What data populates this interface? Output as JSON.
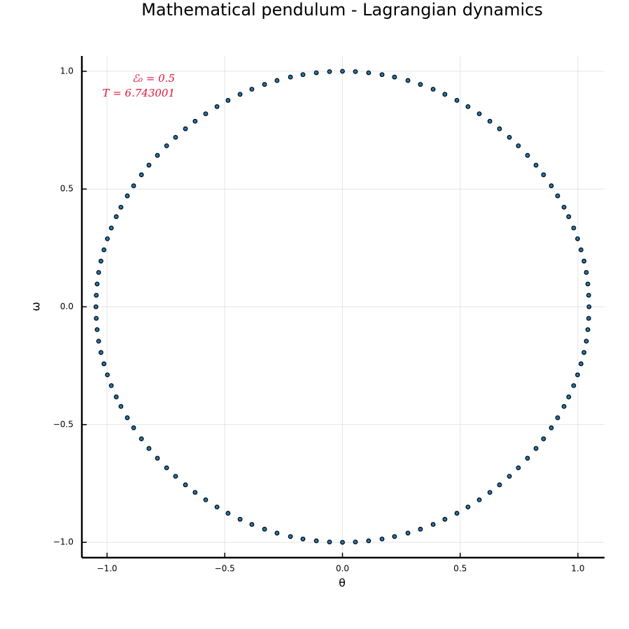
{
  "chart_data": {
    "type": "scatter",
    "title": "Mathematical pendulum - Lagrangian dynamics",
    "x_label": "θ",
    "y_label": "ω",
    "annotations": [
      "ℰ₀ = 0.5",
      "T = 6.743001"
    ],
    "annotation_color": "#dc143c",
    "grid": true,
    "xlim": [
      -1.107,
      1.113
    ],
    "ylim": [
      -1.065,
      1.065
    ],
    "xticks": [
      {
        "value": -1,
        "label": "−1.0"
      },
      {
        "value": -0.5,
        "label": "−0.5"
      },
      {
        "value": 0,
        "label": "0.0"
      },
      {
        "value": 0.5,
        "label": "0.5"
      },
      {
        "value": 1,
        "label": "1.0"
      }
    ],
    "yticks": [
      {
        "value": -1,
        "label": "−1.0"
      },
      {
        "value": -0.5,
        "label": "−0.5"
      },
      {
        "value": 0,
        "label": "0.0"
      },
      {
        "value": 0.5,
        "label": "0.5"
      },
      {
        "value": 1,
        "label": "1.0"
      }
    ],
    "color": "#1f78b4",
    "x": [
      0,
      0.055,
      0.111,
      0.168,
      0.221,
      0.278,
      0.331,
      0.385,
      0.435,
      0.486,
      0.533,
      0.581,
      0.626,
      0.667,
      0.709,
      0.747,
      0.786,
      0.822,
      0.854,
      0.887,
      0.914,
      0.941,
      0.961,
      0.982,
      0.9986,
      1.0132,
      1.0259,
      1.0357,
      1.0421,
      1.0458,
      1.0472,
      1.0458,
      1.0421,
      1.0357,
      1.0259,
      1.0132,
      0.9986,
      0.982,
      0.961,
      0.941,
      0.914,
      0.887,
      0.854,
      0.822,
      0.786,
      0.747,
      0.709,
      0.667,
      0.626,
      0.581,
      0.533,
      0.486,
      0.435,
      0.385,
      0.331,
      0.278,
      0.221,
      0.168,
      0.111,
      0.055,
      0,
      -0.055,
      -0.111,
      -0.168,
      -0.221,
      -0.278,
      -0.331,
      -0.385,
      -0.435,
      -0.486,
      -0.533,
      -0.581,
      -0.626,
      -0.667,
      -0.709,
      -0.747,
      -0.786,
      -0.822,
      -0.854,
      -0.887,
      -0.914,
      -0.941,
      -0.961,
      -0.982,
      -0.9986,
      -1.0132,
      -1.0259,
      -1.0357,
      -1.0421,
      -1.0458,
      -1.0472,
      -1.0458,
      -1.0421,
      -1.0357,
      -1.0259,
      -1.0132,
      -0.9986,
      -0.982,
      -0.961,
      -0.941,
      -0.914,
      -0.887,
      -0.854,
      -0.822,
      -0.786,
      -0.747,
      -0.709,
      -0.667,
      -0.626,
      -0.581,
      -0.533,
      -0.486,
      -0.435,
      -0.385,
      -0.331,
      -0.278,
      -0.221,
      -0.168,
      -0.111,
      -0.055
    ],
    "values": [
      1,
      0.9985,
      0.9938,
      0.9858,
      0.9754,
      0.9608,
      0.9442,
      0.9239,
      0.9021,
      0.8766,
      0.85,
      0.8196,
      0.7879,
      0.7559,
      0.7197,
      0.6837,
      0.6429,
      0.6014,
      0.5606,
      0.5137,
      0.471,
      0.423,
      0.3827,
      0.3346,
      0.289,
      0.242,
      0.194,
      0.146,
      0.097,
      0.049,
      0,
      -0.049,
      -0.097,
      -0.146,
      -0.194,
      -0.242,
      -0.289,
      -0.3346,
      -0.3827,
      -0.423,
      -0.471,
      -0.5137,
      -0.5606,
      -0.6014,
      -0.6429,
      -0.6837,
      -0.7197,
      -0.7559,
      -0.7879,
      -0.8196,
      -0.85,
      -0.8766,
      -0.9021,
      -0.9239,
      -0.9442,
      -0.9608,
      -0.9754,
      -0.9858,
      -0.9938,
      -0.9985,
      -1,
      -0.9985,
      -0.9938,
      -0.9858,
      -0.9754,
      -0.9608,
      -0.9442,
      -0.9239,
      -0.9021,
      -0.8766,
      -0.85,
      -0.8196,
      -0.7879,
      -0.7559,
      -0.7197,
      -0.6837,
      -0.6429,
      -0.6014,
      -0.5606,
      -0.5137,
      -0.471,
      -0.423,
      -0.3827,
      -0.3346,
      -0.289,
      -0.242,
      -0.194,
      -0.146,
      -0.097,
      -0.049,
      0,
      0.049,
      0.097,
      0.146,
      0.194,
      0.242,
      0.289,
      0.3346,
      0.3827,
      0.423,
      0.471,
      0.5137,
      0.5606,
      0.6014,
      0.6429,
      0.6837,
      0.7197,
      0.7559,
      0.7879,
      0.8196,
      0.85,
      0.8766,
      0.9021,
      0.9239,
      0.9442,
      0.9608,
      0.9754,
      0.9858,
      0.9938,
      0.9985
    ]
  }
}
